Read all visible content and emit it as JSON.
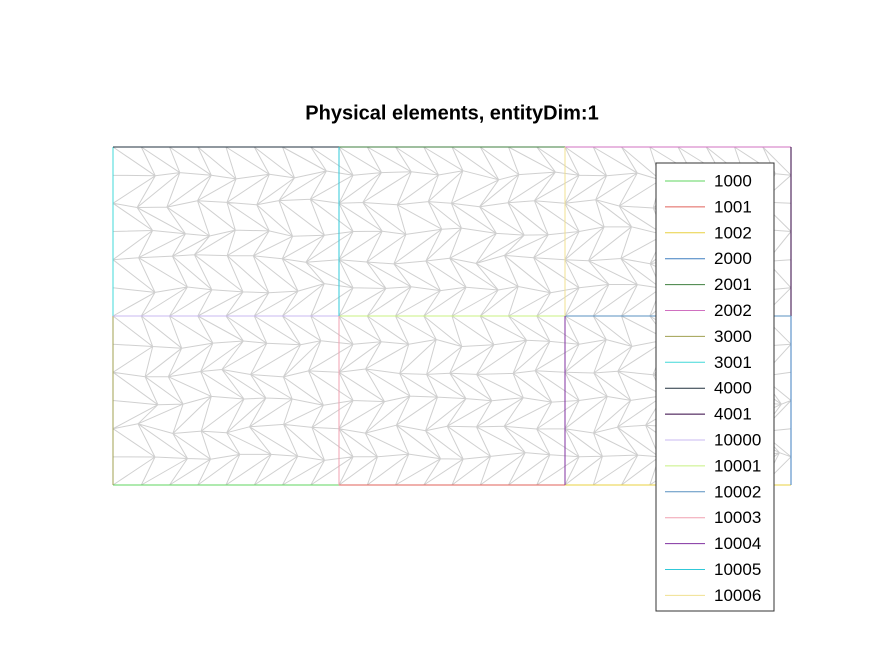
{
  "title": "Physical elements, entityDim:1",
  "legend": [
    {
      "label": "1000",
      "color": "#5fd45f"
    },
    {
      "label": "1001",
      "color": "#e0625a"
    },
    {
      "label": "1002",
      "color": "#e8d040"
    },
    {
      "label": "2000",
      "color": "#3f7fc0"
    },
    {
      "label": "2001",
      "color": "#3f7f3f"
    },
    {
      "label": "2002",
      "color": "#d070c0"
    },
    {
      "label": "3000",
      "color": "#a0a050"
    },
    {
      "label": "3001",
      "color": "#40d8d8"
    },
    {
      "label": "4000",
      "color": "#20303f"
    },
    {
      "label": "4001",
      "color": "#300040"
    },
    {
      "label": "10000",
      "color": "#c8b8f0"
    },
    {
      "label": "10001",
      "color": "#c8f080"
    },
    {
      "label": "10002",
      "color": "#5890c0"
    },
    {
      "label": "10003",
      "color": "#f0a0b0"
    },
    {
      "label": "10004",
      "color": "#8030a0"
    },
    {
      "label": "10005",
      "color": "#30c8d8"
    },
    {
      "label": "10006",
      "color": "#f0e090"
    }
  ]
}
